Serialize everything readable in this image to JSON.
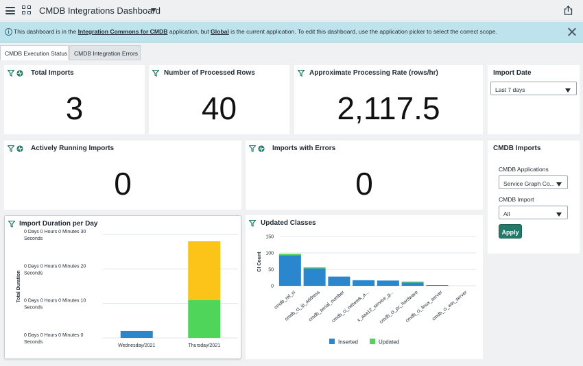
{
  "topbar": {
    "title": "CMDB Integrations Dashboard"
  },
  "banner": {
    "text_1": "This dashboard is in the ",
    "link_1": "Integration Commons for CMDB",
    "text_2": " application, but ",
    "link_2": "Global",
    "text_3": " is the current application. To edit this dashboard, use the application picker to select the correct scope."
  },
  "tabs": [
    {
      "label": "CMDB Execution Status",
      "active": true
    },
    {
      "label": "CMDB Integration Errors",
      "active": false
    }
  ],
  "cards": {
    "total_imports": {
      "title": "Total Imports",
      "value": "3"
    },
    "processed_rows": {
      "title": "Number of Processed Rows",
      "value": "40"
    },
    "processing_rate": {
      "title": "Approximate Processing Rate (rows/hr)",
      "value": "2,117.5"
    },
    "running_imports": {
      "title": "Actively Running Imports",
      "value": "0"
    },
    "imports_errors": {
      "title": "Imports with Errors",
      "value": "0"
    }
  },
  "import_date": {
    "title": "Import Date",
    "selected": "Last 7 days"
  },
  "cmdb_imports": {
    "title": "CMDB Imports",
    "applications_label": "CMDB Applications",
    "applications_selected": "Service Graph Co...",
    "import_label": "CMDB Import",
    "import_selected": "All",
    "apply_label": "Apply"
  },
  "colors": {
    "inserted": "#2a87cd",
    "updated": "#4fd65a",
    "thursday_top": "#fcc419",
    "accent": "#26796a"
  },
  "chart_data": [
    {
      "type": "bar",
      "title": "Import Duration per Day",
      "ylabel": "Total Duration",
      "xlabel": "",
      "categories": [
        "Wednesday/2021",
        "Thursday/2021"
      ],
      "y_ticks": [
        {
          "value": 0,
          "label_1": "0 Days 0 Hours 0 Minutes 0",
          "label_2": "Seconds"
        },
        {
          "value": 10,
          "label_1": "0 Days 0 Hours 0 Minutes 10",
          "label_2": "Seconds"
        },
        {
          "value": 20,
          "label_1": "0 Days 0 Hours 0 Minutes 20",
          "label_2": "Seconds"
        },
        {
          "value": 30,
          "label_1": "0 Days 0 Hours 0 Minutes 30",
          "label_2": "Seconds"
        }
      ],
      "ylim": [
        0,
        30
      ],
      "stacks": [
        {
          "category": "Wednesday/2021",
          "segments": [
            {
              "value": 2,
              "color": "#2a87cd"
            }
          ]
        },
        {
          "category": "Thursday/2021",
          "segments": [
            {
              "value": 11,
              "color": "#4fd65a"
            },
            {
              "value": 17,
              "color": "#fcc419"
            }
          ]
        }
      ],
      "grid": true
    },
    {
      "type": "bar",
      "title": "Updated Classes",
      "ylabel": "CI Count",
      "xlabel": "",
      "categories": [
        "cmdb_rel_ci",
        "cmdb_ci_ip_address",
        "cmdb_serial_number",
        "cmdb_ci_network_a...",
        "x_aaa12_service_g...",
        "cmdb_ci_pc_hardware",
        "cmdb_ci_linux_server",
        "cmdb_ci_win_server"
      ],
      "series": [
        {
          "name": "Inserted",
          "values": [
            93,
            53,
            28,
            17,
            16,
            10,
            2,
            0
          ]
        },
        {
          "name": "Updated",
          "values": [
            4,
            3,
            0,
            0,
            0,
            3,
            0,
            0
          ]
        }
      ],
      "y_ticks": [
        0,
        50,
        100,
        150
      ],
      "ylim": [
        0,
        150
      ],
      "grid": true,
      "legend": "bottom"
    }
  ]
}
